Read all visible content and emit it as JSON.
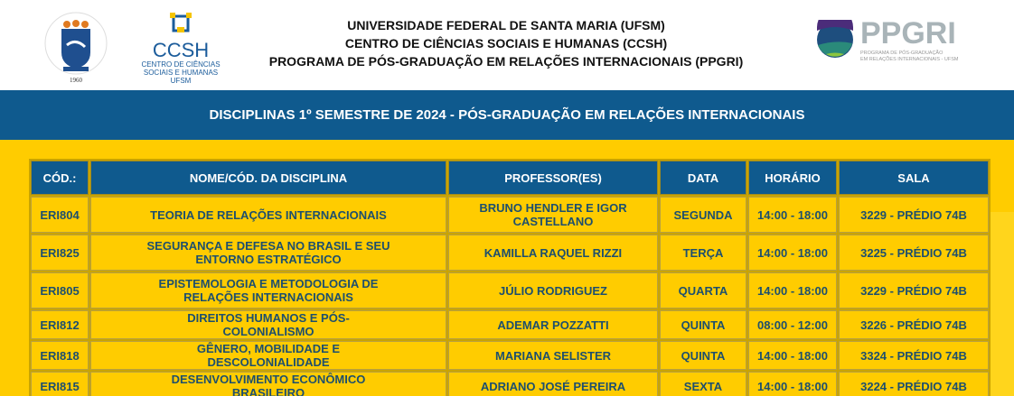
{
  "logos": {
    "ufsm": {
      "ring_text": "Universidade Federal de Santa Maria",
      "year": "1960"
    },
    "ccsh": {
      "title": "CCSH",
      "line1": "CENTRO DE CIÊNCIAS",
      "line2": "SOCIAIS E HUMANAS",
      "line3": "UFSM"
    },
    "ppgri": {
      "title": "PPGRI",
      "line1": "PROGRAMA DE PÓS-GRADUAÇÃO",
      "line2": "EM RELAÇÕES INTERNACIONAIS - UFSM"
    }
  },
  "header": {
    "line1": "UNIVERSIDADE FEDERAL DE SANTA MARIA (UFSM)",
    "line2": "CENTRO DE CIÊNCIAS SOCIAIS E HUMANAS (CCSH)",
    "line3": "PROGRAMA DE PÓS-GRADUAÇÃO EM RELAÇÕES INTERNACIONAIS (PPGRI)"
  },
  "banner": "DISCIPLINAS 1º SEMESTRE DE 2024 - PÓS-GRADUAÇÃO EM RELAÇÕES INTERNACIONAIS",
  "colors": {
    "blue": "#0f5a8e",
    "yellow": "#ffcc00",
    "cell_text": "#1d4f6e"
  },
  "table": {
    "headers": [
      "CÓD.:",
      "NOME/CÓD. DA DISCIPLINA",
      "PROFESSOR(ES)",
      "DATA",
      "HORÁRIO",
      "SALA"
    ],
    "rows": [
      [
        "ERI804",
        "TEORIA DE RELAÇÕES INTERNACIONAIS",
        "BRUNO HENDLER E IGOR CASTELLANO",
        "SEGUNDA",
        "14:00 - 18:00",
        "3229 - PRÉDIO 74B"
      ],
      [
        "ERI825",
        "SEGURANÇA E DEFESA NO BRASIL E SEU ENTORNO ESTRATÉGICO",
        "KAMILLA RAQUEL RIZZI",
        "TERÇA",
        "14:00 - 18:00",
        "3225 - PRÉDIO 74B"
      ],
      [
        "ERI805",
        "EPISTEMOLOGIA E METODOLOGIA DE RELAÇÕES INTERNACIONAIS",
        "JÚLIO RODRIGUEZ",
        "QUARTA",
        "14:00 - 18:00",
        "3229 - PRÉDIO 74B"
      ],
      [
        "ERI812",
        "DIREITOS HUMANOS E PÓS-COLONIALISMO",
        "ADEMAR POZZATTI",
        "QUINTA",
        "08:00 - 12:00",
        "3226 - PRÉDIO 74B"
      ],
      [
        "ERI818",
        "GÊNERO, MOBILIDADE E DESCOLONIALIDADE",
        "MARIANA SELISTER",
        "QUINTA",
        "14:00 - 18:00",
        "3324 - PRÉDIO 74B"
      ],
      [
        "ERI815",
        "DESENVOLVIMENTO ECONÔMICO BRASILEIRO",
        "ADRIANO JOSÉ PEREIRA",
        "SEXTA",
        "14:00 - 18:00",
        "3224 - PRÉDIO 74B"
      ]
    ]
  }
}
